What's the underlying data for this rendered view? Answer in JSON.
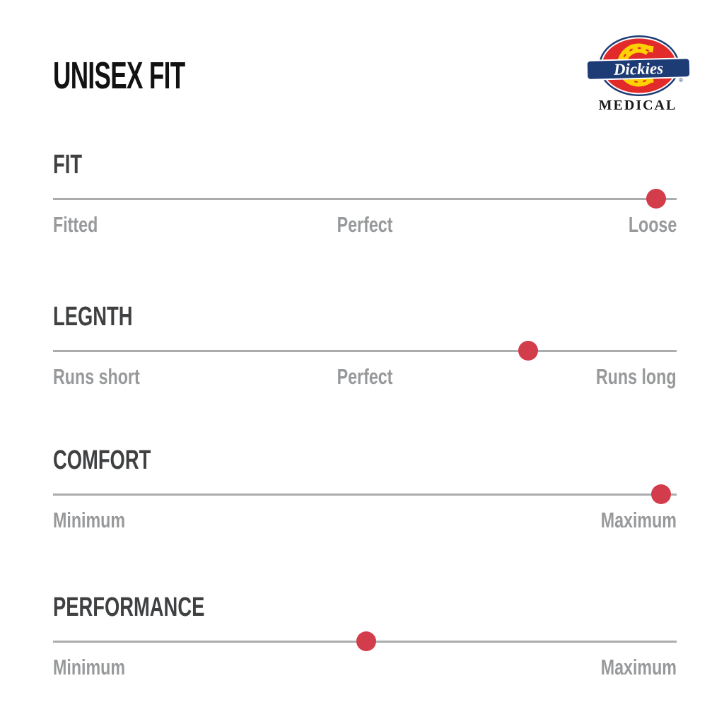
{
  "page_title": "UNISEX FIT",
  "brand": {
    "name": "Dickies",
    "registered_mark": "®",
    "sub_label": "MEDICAL"
  },
  "colors": {
    "dot_red": "#d33c4a",
    "track_gray": "#aaacae",
    "heading_gray": "#3f4042",
    "label_gray": "#97999b",
    "title_black": "#121212",
    "logo_red": "#e22a2a",
    "logo_yellow": "#ffd100",
    "logo_navy": "#1d3b74"
  },
  "sliders": [
    {
      "heading": "FIT",
      "value_pct": 96.7,
      "left_label": "Fitted",
      "center_label": "Perfect",
      "right_label": "Loose"
    },
    {
      "heading": "LEGNTH",
      "value_pct": 76.2,
      "left_label": "Runs short",
      "center_label": "Perfect",
      "right_label": "Runs long"
    },
    {
      "heading": "COMFORT",
      "value_pct": 97.5,
      "left_label": "Minimum",
      "center_label": "",
      "right_label": "Maximum"
    },
    {
      "heading": "PERFORMANCE",
      "value_pct": 50.2,
      "left_label": "Minimum",
      "center_label": "",
      "right_label": "Maximum"
    }
  ],
  "chart_data": {
    "type": "scatter",
    "title": "UNISEX FIT",
    "xlim": [
      0,
      100
    ],
    "grid": false,
    "series": [
      {
        "name": "FIT",
        "value_pct": 96.7,
        "scale_labels": [
          "Fitted",
          "Perfect",
          "Loose"
        ],
        "reading": "Loose"
      },
      {
        "name": "LEGNTH",
        "value_pct": 76.2,
        "scale_labels": [
          "Runs short",
          "Perfect",
          "Runs long"
        ],
        "reading": "between Perfect and Runs long"
      },
      {
        "name": "COMFORT",
        "value_pct": 97.5,
        "scale_labels": [
          "Minimum",
          "Maximum"
        ],
        "reading": "Maximum"
      },
      {
        "name": "PERFORMANCE",
        "value_pct": 50.2,
        "scale_labels": [
          "Minimum",
          "Maximum"
        ],
        "reading": "midpoint"
      }
    ]
  }
}
